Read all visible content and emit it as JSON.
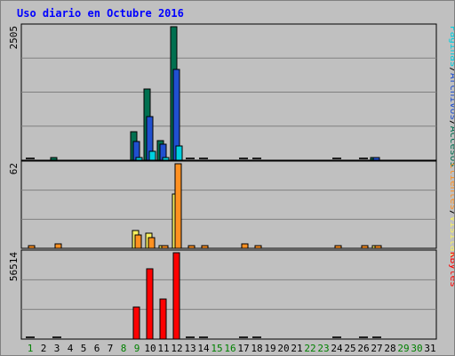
{
  "title": "Uso diario en Octubre 2016",
  "chart_data": [
    {
      "type": "bar",
      "categories": [
        "1",
        "2",
        "3",
        "4",
        "5",
        "6",
        "7",
        "8",
        "9",
        "10",
        "11",
        "12",
        "13",
        "14",
        "15",
        "16",
        "17",
        "18",
        "19",
        "20",
        "21",
        "22",
        "23",
        "24",
        "25",
        "26",
        "27",
        "28",
        "29",
        "30",
        "31"
      ],
      "ymax_label": "2505",
      "ylim": [
        0,
        2505
      ],
      "grid": true,
      "series": [
        {
          "name": "Accesos",
          "color": "#007050",
          "values": [
            0,
            0,
            30,
            0,
            0,
            0,
            0,
            0,
            540,
            1330,
            370,
            2505,
            0,
            0,
            0,
            0,
            0,
            0,
            0,
            0,
            0,
            0,
            0,
            0,
            0,
            0,
            55,
            0,
            0,
            0,
            0
          ]
        },
        {
          "name": "Archivos",
          "color": "#2050d0",
          "values": [
            0,
            0,
            0,
            0,
            0,
            0,
            0,
            0,
            350,
            820,
            300,
            1700,
            0,
            0,
            0,
            0,
            0,
            0,
            0,
            0,
            0,
            0,
            0,
            0,
            0,
            0,
            40,
            0,
            0,
            0,
            0
          ]
        },
        {
          "name": "Páginas",
          "color": "#00d0e0",
          "values": [
            0,
            0,
            0,
            0,
            0,
            0,
            0,
            0,
            40,
            170,
            30,
            260,
            0,
            0,
            0,
            0,
            0,
            0,
            0,
            0,
            0,
            0,
            0,
            0,
            0,
            0,
            0,
            0,
            0,
            0,
            0
          ]
        }
      ]
    },
    {
      "type": "bar",
      "ymax_label": "62",
      "ylim": [
        0,
        62
      ],
      "grid": true,
      "series": [
        {
          "name": "Visitas",
          "color": "#f8f060",
          "values": [
            0,
            0,
            0,
            0,
            0,
            0,
            0,
            0,
            13,
            11,
            1,
            40,
            0,
            0,
            0,
            0,
            0,
            0,
            0,
            0,
            0,
            0,
            0,
            0,
            0,
            0,
            1,
            0,
            0,
            0,
            0
          ]
        },
        {
          "name": "Clientes",
          "color": "#ff9020",
          "values": [
            2,
            0,
            3,
            0,
            0,
            0,
            0,
            0,
            10,
            8,
            2,
            62,
            1,
            2,
            0,
            0,
            3,
            1,
            0,
            0,
            0,
            0,
            0,
            2,
            0,
            1,
            2,
            0,
            0,
            0,
            0
          ]
        }
      ]
    },
    {
      "type": "bar",
      "ymax_label": "56514",
      "ylim": [
        0,
        56514
      ],
      "grid": true,
      "series": [
        {
          "name": "KBytes",
          "color": "#ff0000",
          "values": [
            0,
            0,
            0,
            0,
            0,
            0,
            0,
            0,
            21000,
            46000,
            26000,
            56514,
            0,
            0,
            0,
            0,
            0,
            0,
            0,
            0,
            0,
            0,
            0,
            0,
            0,
            0,
            0,
            0,
            0,
            0,
            0
          ]
        }
      ]
    }
  ],
  "weekend_color": "#008000",
  "weekend_days": [
    "1",
    "8",
    "9",
    "15",
    "16",
    "22",
    "23",
    "29",
    "30"
  ],
  "legend_separator": "/"
}
